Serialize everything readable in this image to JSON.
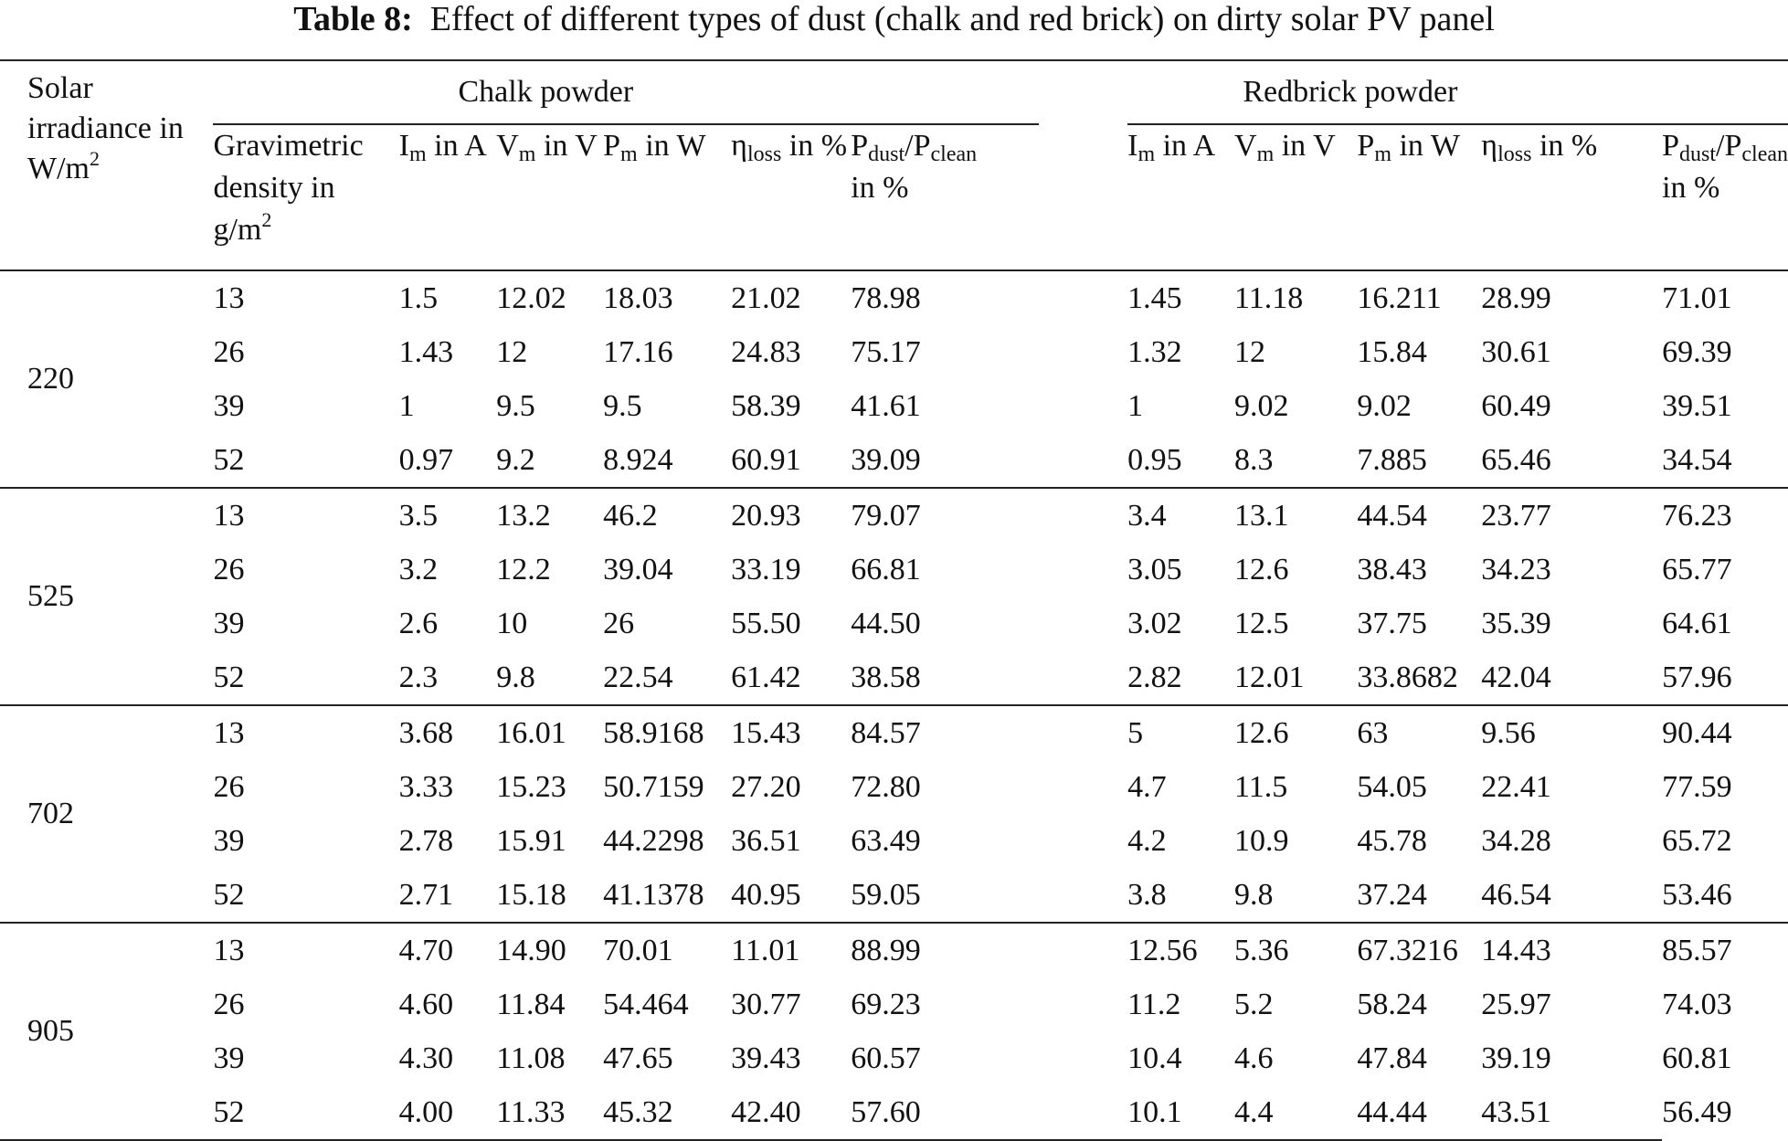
{
  "caption": {
    "label": "Table 8:",
    "text": "Effect of different types of dust (chalk and red brick) on dirty solar PV panel"
  },
  "header": {
    "irradiance_label": "Solar irradiance in W/m",
    "irradiance_sup": "2",
    "group_chalk": "Chalk powder",
    "group_redbrick": "Redbrick powder",
    "gravimetric_label": "Gravimetric density in g/m",
    "gravimetric_sup": "2",
    "im_main": "I",
    "im_sub": "m",
    "im_unit": " in A",
    "vm_main": "V",
    "vm_sub": "m",
    "vm_unit": " in V",
    "pm_main": "P",
    "pm_sub": "m",
    "pm_unit": " in W",
    "eta_main": "η",
    "eta_sub": "loss",
    "eta_unit": " in %",
    "ratio_p1": "P",
    "ratio_sub1": "dust",
    "ratio_slash": "/P",
    "ratio_sub2": "clean",
    "ratio_unit": " in %"
  },
  "blocks": [
    {
      "irradiance": "220",
      "rows": [
        [
          "13",
          "1.5",
          "12.02",
          "18.03",
          "21.02",
          "78.98",
          "1.45",
          "11.18",
          "16.211",
          "28.99",
          "71.01"
        ],
        [
          "26",
          "1.43",
          "12",
          "17.16",
          "24.83",
          "75.17",
          "1.32",
          "12",
          "15.84",
          "30.61",
          "69.39"
        ],
        [
          "39",
          "1",
          "9.5",
          "9.5",
          "58.39",
          "41.61",
          "1",
          "9.02",
          "9.02",
          "60.49",
          "39.51"
        ],
        [
          "52",
          "0.97",
          "9.2",
          "8.924",
          "60.91",
          "39.09",
          "0.95",
          "8.3",
          "7.885",
          "65.46",
          "34.54"
        ]
      ]
    },
    {
      "irradiance": "525",
      "rows": [
        [
          "13",
          "3.5",
          "13.2",
          "46.2",
          "20.93",
          "79.07",
          "3.4",
          "13.1",
          "44.54",
          "23.77",
          "76.23"
        ],
        [
          "26",
          "3.2",
          "12.2",
          "39.04",
          "33.19",
          "66.81",
          "3.05",
          "12.6",
          "38.43",
          "34.23",
          "65.77"
        ],
        [
          "39",
          "2.6",
          "10",
          "26",
          "55.50",
          "44.50",
          "3.02",
          "12.5",
          "37.75",
          "35.39",
          "64.61"
        ],
        [
          "52",
          "2.3",
          "9.8",
          "22.54",
          "61.42",
          "38.58",
          "2.82",
          "12.01",
          "33.8682",
          "42.04",
          "57.96"
        ]
      ]
    },
    {
      "irradiance": "702",
      "rows": [
        [
          "13",
          "3.68",
          "16.01",
          "58.9168",
          "15.43",
          "84.57",
          "5",
          "12.6",
          "63",
          "9.56",
          "90.44"
        ],
        [
          "26",
          "3.33",
          "15.23",
          "50.7159",
          "27.20",
          "72.80",
          "4.7",
          "11.5",
          "54.05",
          "22.41",
          "77.59"
        ],
        [
          "39",
          "2.78",
          "15.91",
          "44.2298",
          "36.51",
          "63.49",
          "4.2",
          "10.9",
          "45.78",
          "34.28",
          "65.72"
        ],
        [
          "52",
          "2.71",
          "15.18",
          "41.1378",
          "40.95",
          "59.05",
          "3.8",
          "9.8",
          "37.24",
          "46.54",
          "53.46"
        ]
      ]
    },
    {
      "irradiance": "905",
      "rows": [
        [
          "13",
          "4.70",
          "14.90",
          "70.01",
          "11.01",
          "88.99",
          "12.56",
          "5.36",
          "67.3216",
          "14.43",
          "85.57"
        ],
        [
          "26",
          "4.60",
          "11.84",
          "54.464",
          "30.77",
          "69.23",
          "11.2",
          "5.2",
          "58.24",
          "25.97",
          "74.03"
        ],
        [
          "39",
          "4.30",
          "11.08",
          "47.65",
          "39.43",
          "60.57",
          "10.4",
          "4.6",
          "47.84",
          "39.19",
          "60.81"
        ],
        [
          "52",
          "4.00",
          "11.33",
          "45.32",
          "42.40",
          "57.60",
          "10.1",
          "4.4",
          "44.44",
          "43.51",
          "56.49"
        ]
      ]
    }
  ]
}
